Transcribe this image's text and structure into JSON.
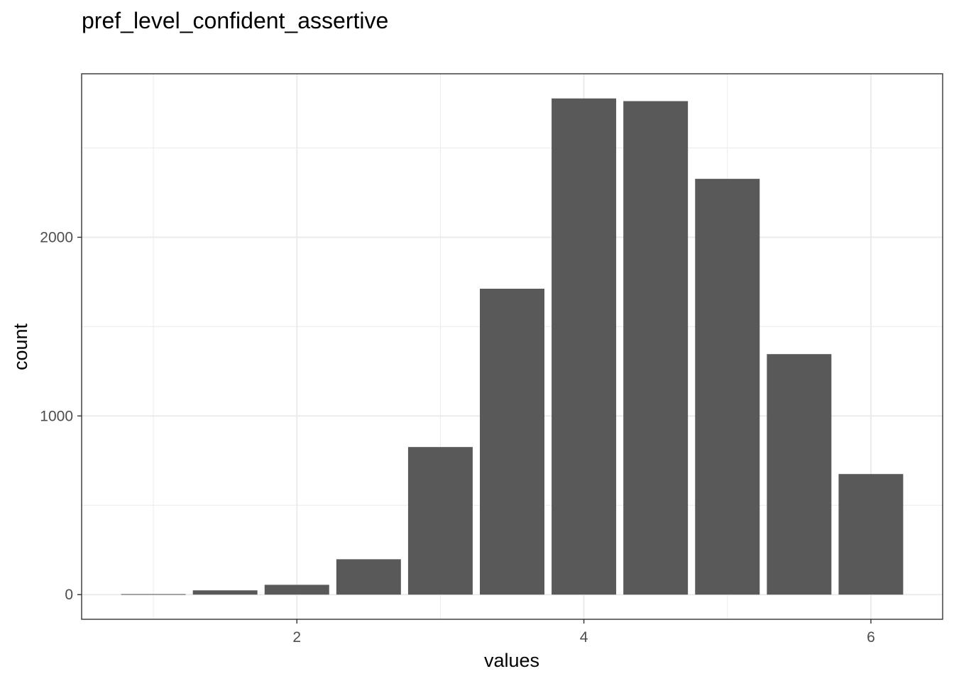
{
  "chart_data": {
    "type": "bar",
    "title": "pref_level_confident_assertive",
    "xlabel": "values",
    "ylabel": "count",
    "bin_width": 0.5,
    "x": [
      1.0,
      1.5,
      2.0,
      2.5,
      3.0,
      3.5,
      4.0,
      4.5,
      5.0,
      5.5,
      6.0
    ],
    "values": [
      3,
      24,
      55,
      198,
      826,
      1712,
      2777,
      2762,
      2327,
      1346,
      675
    ],
    "xlim": [
      0.5,
      6.5
    ],
    "ylim": [
      -138,
      2915
    ],
    "x_ticks": [
      2,
      4,
      6
    ],
    "x_tick_labels": [
      "2",
      "4",
      "6"
    ],
    "y_ticks": [
      0,
      1000,
      2000
    ],
    "y_tick_labels": [
      "0",
      "1000",
      "2000"
    ],
    "grid": true,
    "legend": "none",
    "bar_color": "#595959",
    "grid_color": "#ebebeb",
    "panel_border_color": "#333333"
  }
}
